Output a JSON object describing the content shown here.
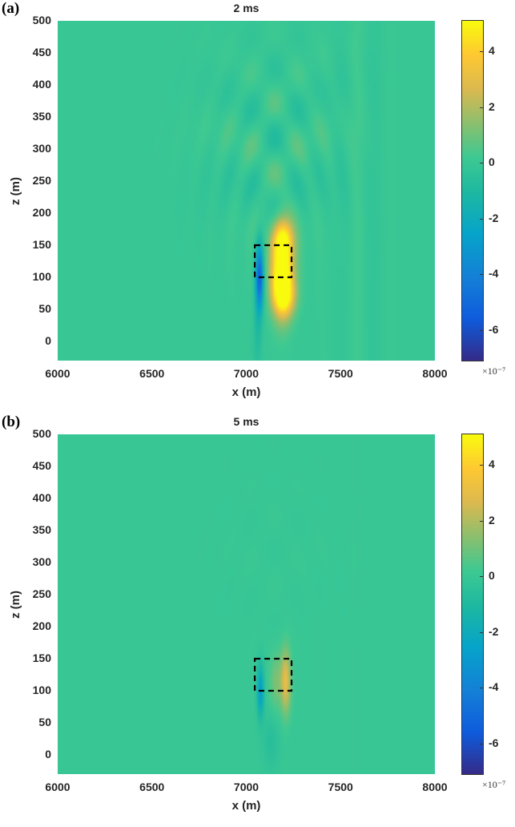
{
  "chart_data": [
    {
      "type": "heatmap",
      "panel_label": "(a)",
      "title": "2 ms",
      "xlabel": "x (m)",
      "ylabel": "z (m)",
      "xlim": [
        6000,
        8000
      ],
      "ylim": [
        -30,
        500
      ],
      "xticks": [
        6000,
        6500,
        7000,
        7500,
        8000
      ],
      "yticks": [
        0,
        50,
        100,
        150,
        200,
        250,
        300,
        350,
        400,
        450,
        500
      ],
      "colorbar": {
        "clim": [
          -7.1,
          5.1
        ],
        "ticks": [
          -6,
          -4,
          -2,
          0,
          2,
          4
        ],
        "exponent_label": "×10⁻⁷",
        "colormap": "parula"
      },
      "dashed_box": {
        "x": [
          7045,
          7240
        ],
        "z": [
          100,
          150
        ]
      },
      "features": [
        {
          "x": 7190,
          "z": 110,
          "amplitude": 7.0,
          "sx": 40,
          "sz": 45
        },
        {
          "x": 7200,
          "z": 160,
          "amplitude": 2.5,
          "sx": 35,
          "sz": 20
        },
        {
          "x": 7200,
          "z": 70,
          "amplitude": 3.0,
          "sx": 40,
          "sz": 20
        },
        {
          "x": 7070,
          "z": 100,
          "amplitude": -5.5,
          "sx": 14,
          "sz": 35
        },
        {
          "x": 7060,
          "z": 20,
          "amplitude": -0.8,
          "sx": 15,
          "sz": 50
        }
      ],
      "ripple_amplitude": 0.9
    },
    {
      "type": "heatmap",
      "panel_label": "(b)",
      "title": "5 ms",
      "xlabel": "x (m)",
      "ylabel": "z (m)",
      "xlim": [
        6000,
        8000
      ],
      "ylim": [
        -30,
        500
      ],
      "xticks": [
        6000,
        6500,
        7000,
        7500,
        8000
      ],
      "yticks": [
        0,
        50,
        100,
        150,
        200,
        250,
        300,
        350,
        400,
        450,
        500
      ],
      "colorbar": {
        "clim": [
          -7.1,
          5.1
        ],
        "ticks": [
          -6,
          -4,
          -2,
          0,
          2,
          4
        ],
        "exponent_label": "×10⁻⁷",
        "colormap": "parula"
      },
      "dashed_box": {
        "x": [
          7045,
          7240
        ],
        "z": [
          100,
          150
        ]
      },
      "features": [
        {
          "x": 7210,
          "z": 115,
          "amplitude": 3.0,
          "sx": 18,
          "sz": 35
        },
        {
          "x": 7160,
          "z": 115,
          "amplitude": 1.2,
          "sx": 25,
          "sz": 30
        },
        {
          "x": 7075,
          "z": 100,
          "amplitude": -3.0,
          "sx": 12,
          "sz": 28
        },
        {
          "x": 7130,
          "z": 20,
          "amplitude": -0.6,
          "sx": 30,
          "sz": 30
        }
      ],
      "ripple_amplitude": 0.1
    }
  ]
}
